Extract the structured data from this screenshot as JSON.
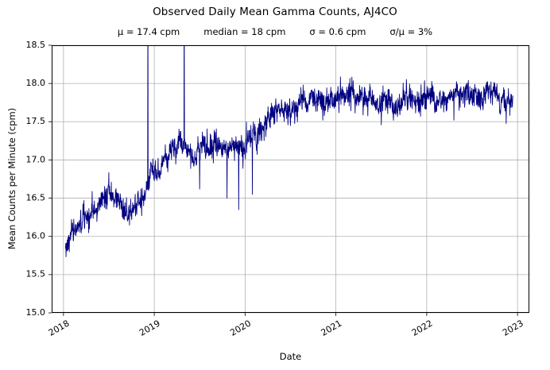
{
  "chart_data": {
    "type": "line",
    "title": "Observed Daily Mean Gamma Counts, AJ4CO",
    "annotations": [
      "μ = 17.4 cpm",
      "median = 18 cpm",
      "σ = 0.6 cpm",
      "σ/μ = 3%"
    ],
    "xlabel": "Date",
    "ylabel": "Mean Counts per Minute (cpm)",
    "grid": true,
    "legend": null,
    "line_color": "#000080",
    "grid_color": "#b0b0b0",
    "spine_color": "#000000",
    "xlim": [
      2017.87,
      2023.13
    ],
    "ylim": [
      15.0,
      18.5
    ],
    "xticks": [
      2018,
      2019,
      2020,
      2021,
      2022,
      2023
    ],
    "xtick_labels": [
      "2018",
      "2019",
      "2020",
      "2021",
      "2022",
      "2023"
    ],
    "yticks": [
      15.0,
      15.5,
      16.0,
      16.5,
      17.0,
      17.5,
      18.0,
      18.5
    ],
    "ytick_labels": [
      "15.0",
      "15.5",
      "16.0",
      "16.5",
      "17.0",
      "17.5",
      "18.0",
      "18.5"
    ],
    "series": {
      "name": "daily-mean-gamma-counts",
      "x_start": 2018.02,
      "x_end": 2022.95,
      "sample_interval_days": 1,
      "noise_sigma": 0.075,
      "noise_seed": 7,
      "trend_anchors": [
        [
          2018.02,
          15.8
        ],
        [
          2018.05,
          15.85
        ],
        [
          2018.1,
          16.0
        ],
        [
          2018.16,
          16.15
        ],
        [
          2018.22,
          16.28
        ],
        [
          2018.3,
          16.4
        ],
        [
          2018.4,
          16.5
        ],
        [
          2018.5,
          16.55
        ],
        [
          2018.58,
          16.45
        ],
        [
          2018.66,
          16.42
        ],
        [
          2018.74,
          16.3
        ],
        [
          2018.82,
          16.42
        ],
        [
          2018.9,
          16.52
        ],
        [
          2018.97,
          16.8
        ],
        [
          2019.0,
          16.95
        ],
        [
          2019.06,
          16.88
        ],
        [
          2019.12,
          17.02
        ],
        [
          2019.2,
          17.08
        ],
        [
          2019.3,
          17.12
        ],
        [
          2019.4,
          17.08
        ],
        [
          2019.5,
          17.1
        ],
        [
          2019.6,
          17.18
        ],
        [
          2019.72,
          17.22
        ],
        [
          2019.8,
          17.12
        ],
        [
          2019.9,
          17.22
        ],
        [
          2020.0,
          17.18
        ],
        [
          2020.1,
          17.28
        ],
        [
          2020.2,
          17.42
        ],
        [
          2020.3,
          17.65
        ],
        [
          2020.4,
          17.75
        ],
        [
          2020.6,
          17.75
        ],
        [
          2020.8,
          17.78
        ],
        [
          2021.0,
          17.8
        ],
        [
          2021.5,
          17.8
        ],
        [
          2022.0,
          17.8
        ],
        [
          2022.5,
          17.84
        ],
        [
          2022.95,
          17.8
        ]
      ],
      "spikes": [
        [
          2018.93,
          19.5
        ],
        [
          2019.33,
          19.5
        ],
        [
          2019.5,
          16.62
        ],
        [
          2019.8,
          16.5
        ],
        [
          2019.93,
          16.35
        ],
        [
          2020.08,
          16.55
        ],
        [
          2020.5,
          17.45
        ],
        [
          2021.5,
          17.46
        ],
        [
          2022.3,
          17.52
        ]
      ]
    }
  }
}
